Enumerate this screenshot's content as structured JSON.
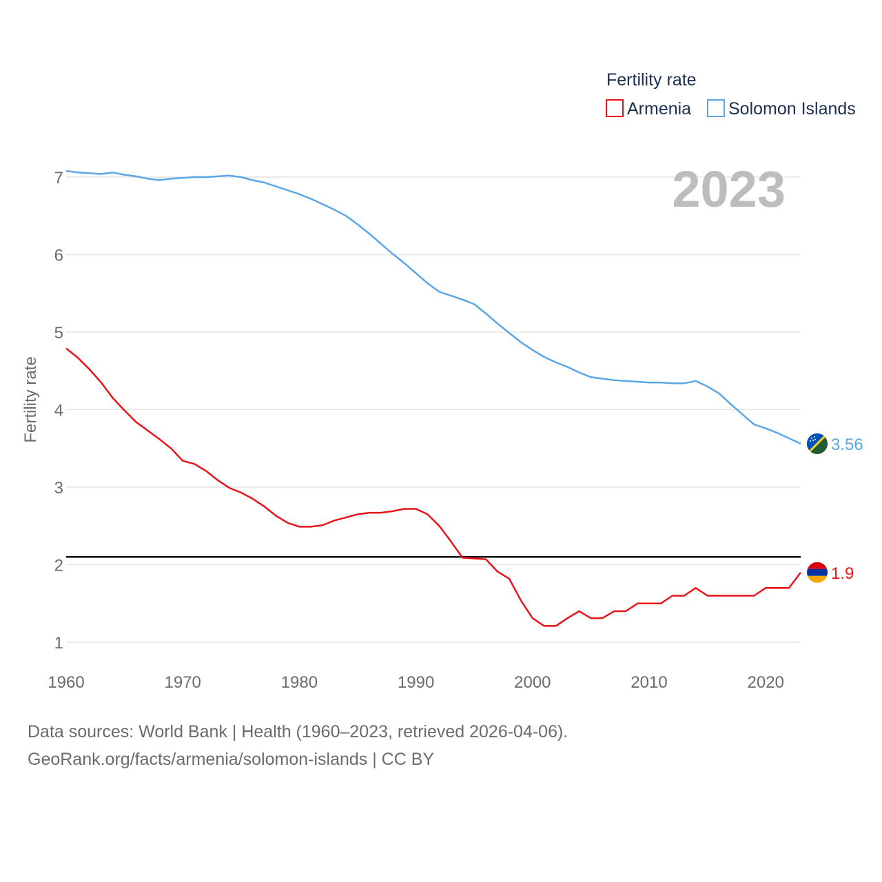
{
  "chart_data": {
    "type": "line",
    "title": "Fertility rate",
    "ylabel": "Fertility rate",
    "xlabel": "",
    "year_label": "2023",
    "xlim": [
      1960,
      2023
    ],
    "ylim": [
      1,
      7
    ],
    "xticks": [
      1960,
      1970,
      1980,
      1990,
      2000,
      2010,
      2020
    ],
    "yticks": [
      1,
      2,
      3,
      4,
      5,
      6,
      7
    ],
    "reference_line": 2.1,
    "legend_position": "top-right",
    "x": [
      1960,
      1961,
      1962,
      1963,
      1964,
      1965,
      1966,
      1967,
      1968,
      1969,
      1970,
      1971,
      1972,
      1973,
      1974,
      1975,
      1976,
      1977,
      1978,
      1979,
      1980,
      1981,
      1982,
      1983,
      1984,
      1985,
      1986,
      1987,
      1988,
      1989,
      1990,
      1991,
      1992,
      1993,
      1994,
      1995,
      1996,
      1997,
      1998,
      1999,
      2000,
      2001,
      2002,
      2003,
      2004,
      2005,
      2006,
      2007,
      2008,
      2009,
      2010,
      2011,
      2012,
      2013,
      2014,
      2015,
      2016,
      2017,
      2018,
      2019,
      2020,
      2021,
      2022,
      2023
    ],
    "series": [
      {
        "name": "Armenia",
        "color": "#e8141a",
        "end_label": "1.9",
        "flag": "armenia-flag",
        "values": [
          4.79,
          4.67,
          4.52,
          4.35,
          4.15,
          3.99,
          3.84,
          3.73,
          3.62,
          3.5,
          3.34,
          3.3,
          3.21,
          3.09,
          2.99,
          2.93,
          2.85,
          2.75,
          2.63,
          2.54,
          2.49,
          2.49,
          2.51,
          2.57,
          2.61,
          2.65,
          2.67,
          2.67,
          2.69,
          2.72,
          2.72,
          2.65,
          2.5,
          2.3,
          2.09,
          2.08,
          2.07,
          1.91,
          1.82,
          1.54,
          1.31,
          1.21,
          1.21,
          1.31,
          1.4,
          1.31,
          1.31,
          1.4,
          1.4,
          1.5,
          1.5,
          1.5,
          1.6,
          1.6,
          1.7,
          1.6,
          1.6,
          1.6,
          1.6,
          1.6,
          1.7,
          1.7,
          1.7,
          1.9
        ]
      },
      {
        "name": "Solomon Islands",
        "color": "#5aa6e6",
        "end_label": "3.56",
        "flag": "solomon-islands-flag",
        "values": [
          7.08,
          7.06,
          7.05,
          7.04,
          7.06,
          7.03,
          7.01,
          6.98,
          6.96,
          6.98,
          6.99,
          7.0,
          7.0,
          7.01,
          7.02,
          7.0,
          6.96,
          6.93,
          6.88,
          6.83,
          6.78,
          6.72,
          6.65,
          6.58,
          6.5,
          6.39,
          6.27,
          6.14,
          6.01,
          5.89,
          5.76,
          5.63,
          5.52,
          5.47,
          5.42,
          5.36,
          5.24,
          5.11,
          4.99,
          4.87,
          4.77,
          4.68,
          4.61,
          4.55,
          4.48,
          4.42,
          4.4,
          4.38,
          4.37,
          4.36,
          4.35,
          4.35,
          4.34,
          4.34,
          4.37,
          4.3,
          4.21,
          4.07,
          3.94,
          3.81,
          3.76,
          3.7,
          3.63,
          3.56
        ]
      }
    ]
  },
  "footer": {
    "line1": "Data sources: World Bank | Health (1960–2023, retrieved 2026-04-06).",
    "line2": "GeoRank.org/facts/armenia/solomon-islands | CC BY"
  }
}
